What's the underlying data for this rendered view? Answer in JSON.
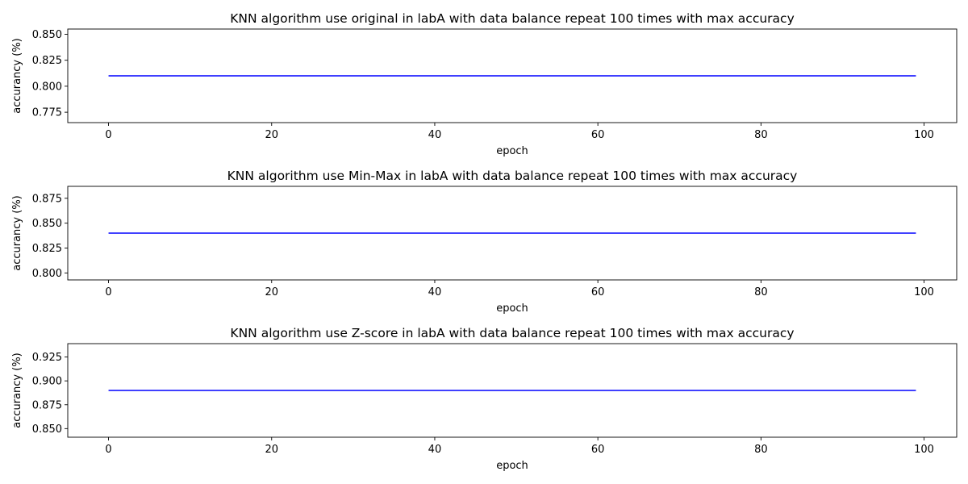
{
  "colors": {
    "line": "#0000ff",
    "axes": "#000000",
    "background": "#ffffff"
  },
  "chart_data": [
    {
      "type": "line",
      "title": "KNN algorithm use original in labA with data balance repeat 100 times with max accuracy",
      "xlabel": "epoch",
      "ylabel": "accurancy (%)",
      "xlim": [
        -5,
        104
      ],
      "ylim": [
        0.765,
        0.855
      ],
      "xticks": [
        0,
        20,
        40,
        60,
        80,
        100
      ],
      "yticks": [
        0.775,
        0.8,
        0.825,
        0.85
      ],
      "ytick_labels": [
        "0.775",
        "0.800",
        "0.825",
        "0.850"
      ],
      "grid": false,
      "series": [
        {
          "x": [
            0,
            99
          ],
          "y": [
            0.81,
            0.81
          ]
        }
      ]
    },
    {
      "type": "line",
      "title": "KNN algorithm use Min-Max in labA with data balance repeat 100 times with max accuracy",
      "xlabel": "epoch",
      "ylabel": "accurancy (%)",
      "xlim": [
        -5,
        104
      ],
      "ylim": [
        0.793,
        0.887
      ],
      "xticks": [
        0,
        20,
        40,
        60,
        80,
        100
      ],
      "yticks": [
        0.8,
        0.825,
        0.85,
        0.875
      ],
      "ytick_labels": [
        "0.800",
        "0.825",
        "0.850",
        "0.875"
      ],
      "grid": false,
      "series": [
        {
          "x": [
            0,
            99
          ],
          "y": [
            0.84,
            0.84
          ]
        }
      ]
    },
    {
      "type": "line",
      "title": "KNN algorithm use Z-score in labA with data balance repeat 100 times with max accuracy",
      "xlabel": "epoch",
      "ylabel": "accurancy (%)",
      "xlim": [
        -5,
        104
      ],
      "ylim": [
        0.841,
        0.939
      ],
      "xticks": [
        0,
        20,
        40,
        60,
        80,
        100
      ],
      "yticks": [
        0.85,
        0.875,
        0.9,
        0.925
      ],
      "ytick_labels": [
        "0.850",
        "0.875",
        "0.900",
        "0.925"
      ],
      "grid": false,
      "series": [
        {
          "x": [
            0,
            99
          ],
          "y": [
            0.89,
            0.89
          ]
        }
      ]
    }
  ]
}
